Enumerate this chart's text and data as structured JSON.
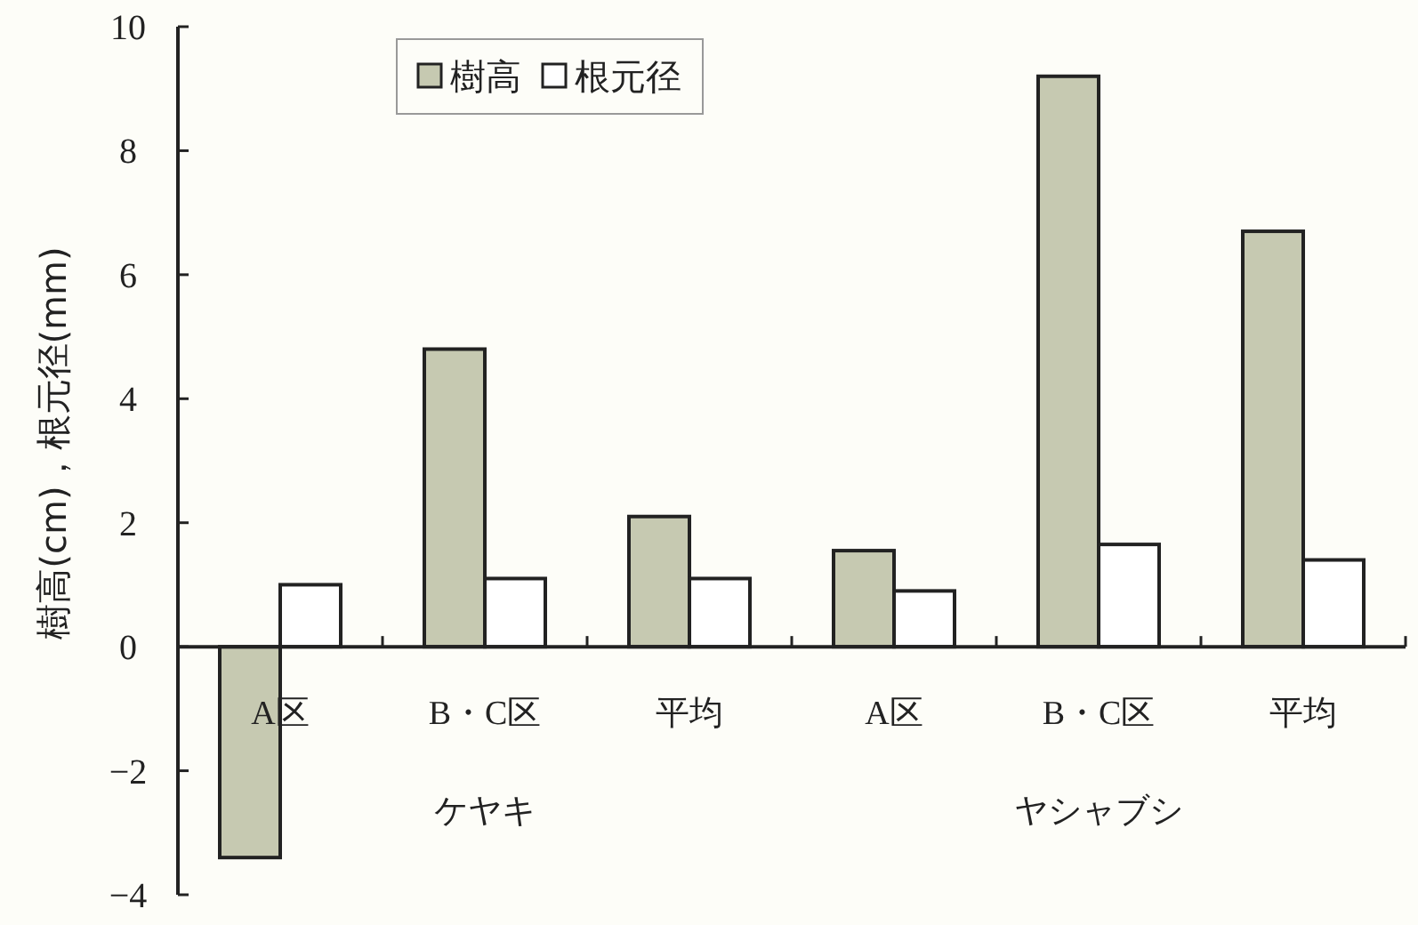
{
  "chart_data": {
    "type": "bar",
    "ylabel": "樹高(cm)，根元径(mm)",
    "categories": [
      "A区",
      "B・C区",
      "平均",
      "A区",
      "B・C区",
      "平均"
    ],
    "series": [
      {
        "name": "樹高",
        "color": "#c6c9b1",
        "values": [
          -3.4,
          4.8,
          2.1,
          1.55,
          9.2,
          6.7
        ]
      },
      {
        "name": "根元径",
        "color": "#ffffff",
        "values": [
          1.0,
          1.1,
          1.1,
          0.9,
          1.65,
          1.4
        ]
      }
    ],
    "ylim": [
      -4,
      10
    ],
    "yticks": [
      -4,
      -2,
      0,
      2,
      4,
      6,
      8,
      10
    ],
    "legend": "top",
    "annotations": [
      "ケヤキ",
      "ヤシャブシ"
    ]
  }
}
